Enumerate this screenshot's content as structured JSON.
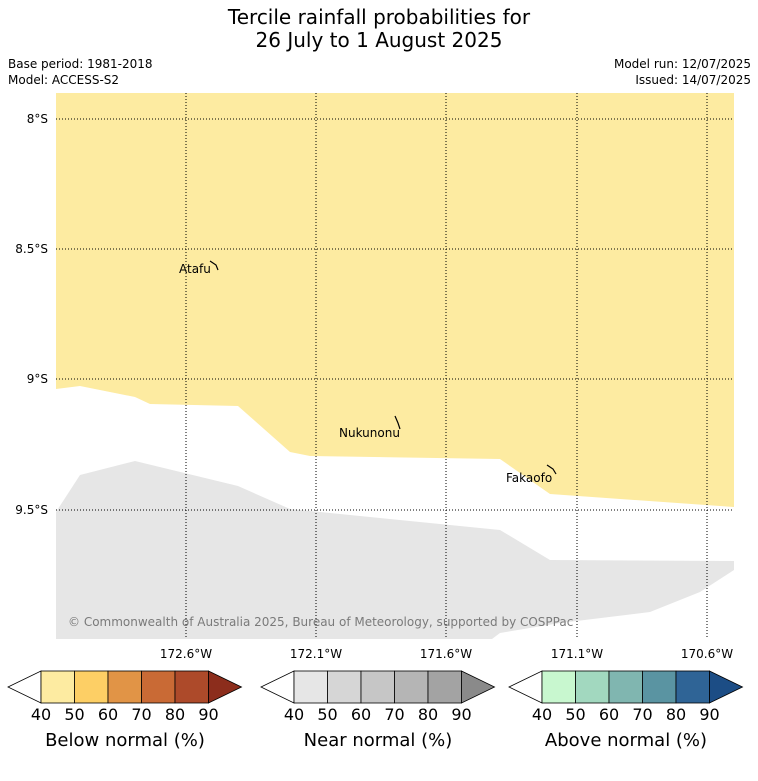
{
  "title_line1": "Tercile rainfall probabilities for",
  "title_line2": "26 July to 1 August 2025",
  "base_period": "Base period: 1981-2018",
  "model": "Model: ACCESS-S2",
  "model_run": "Model run: 12/07/2025",
  "issued": "Issued: 14/07/2025",
  "lat_labels": [
    "8°S",
    "8.5°S",
    "9°S",
    "9.5°S"
  ],
  "lon_labels": [
    "172.6°W",
    "172.1°W",
    "171.6°W",
    "171.1°W",
    "170.6°W"
  ],
  "places": [
    "Atafu",
    "Nukunonu",
    "Fakaofo"
  ],
  "copyright": "© Commonwealth of Australia 2025, Bureau of Meteorology, supported by COSPPac",
  "map_colors": {
    "below_normal_40_50": "#fdeba1",
    "near_normal_40_50": "#e6e6e6",
    "background": "#ffffff"
  },
  "colorbars": {
    "below": {
      "label": "Below normal (%)",
      "ticks": [
        "40",
        "50",
        "60",
        "70",
        "80",
        "90"
      ],
      "colors": [
        "#ffffff",
        "#fdeba1",
        "#fdcf65",
        "#e19446",
        "#c96a35",
        "#ad4a2a",
        "#8c2d1c"
      ]
    },
    "near": {
      "label": "Near normal (%)",
      "ticks": [
        "40",
        "50",
        "60",
        "70",
        "80",
        "90"
      ],
      "colors": [
        "#ffffff",
        "#e6e6e6",
        "#d6d6d6",
        "#c6c6c6",
        "#b5b5b5",
        "#a3a3a3",
        "#8a8a8a"
      ]
    },
    "above": {
      "label": "Above normal (%)",
      "ticks": [
        "40",
        "50",
        "60",
        "70",
        "80",
        "90"
      ],
      "colors": [
        "#ffffff",
        "#c8f7cf",
        "#a2d8bf",
        "#80b6b0",
        "#5a94a2",
        "#2f6496",
        "#1c4d85"
      ]
    }
  }
}
